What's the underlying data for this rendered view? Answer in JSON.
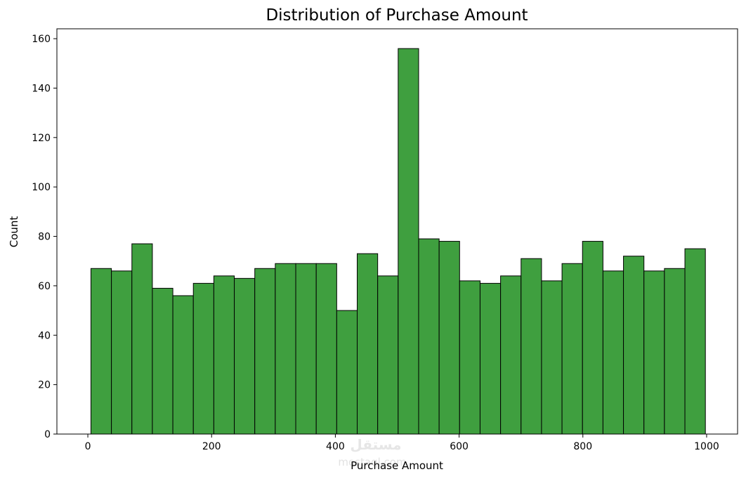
{
  "chart_data": {
    "type": "bar",
    "title": "Distribution of Purchase Amount",
    "xlabel": "Purchase Amount",
    "ylabel": "Count",
    "xlim": [
      -50,
      1050
    ],
    "ylim": [
      0,
      164
    ],
    "x_ticks": [
      0,
      200,
      400,
      600,
      800,
      1000
    ],
    "y_ticks": [
      0,
      20,
      40,
      60,
      80,
      100,
      120,
      140,
      160
    ],
    "bins": {
      "start": 5,
      "width": 33.1,
      "count": 30
    },
    "values": [
      67,
      66,
      77,
      59,
      56,
      61,
      64,
      63,
      67,
      69,
      69,
      69,
      50,
      73,
      64,
      156,
      79,
      78,
      62,
      61,
      64,
      71,
      62,
      69,
      78,
      66,
      72,
      66,
      67,
      75
    ],
    "bar_color": "#3f9f3f",
    "edge_color": "#000000",
    "grid": false,
    "legend": false
  },
  "watermark": {
    "text": "مستقل",
    "subtext": "mostaql.com"
  }
}
